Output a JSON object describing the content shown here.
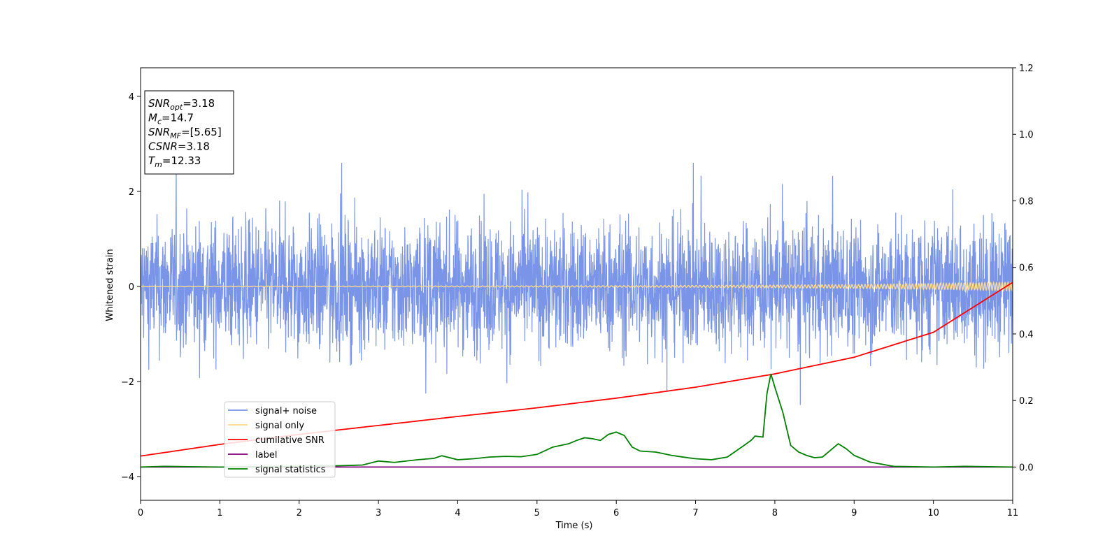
{
  "chart_data": {
    "type": "line",
    "xlabel": "Time (s)",
    "ylabel": "Whitened strain",
    "xlim": [
      0,
      11
    ],
    "ylim": [
      -4.5,
      4.6
    ],
    "y2lim": [
      -0.1,
      1.2
    ],
    "x_ticks": [
      0,
      1,
      2,
      3,
      4,
      5,
      6,
      7,
      8,
      9,
      10,
      11
    ],
    "y_ticks": [
      -4,
      -2,
      0,
      2,
      4
    ],
    "y2_ticks": [
      "0.0",
      "0.2",
      "0.4",
      "0.6",
      "0.8",
      "1.0",
      "1.2"
    ],
    "legend_position": "lower-left",
    "legend": [
      {
        "label": "signal+ noise",
        "color": "#7a95e8"
      },
      {
        "label": "signal only",
        "color": "#ffd98a"
      },
      {
        "label": "cumilative SNR",
        "color": "#ff0000"
      },
      {
        "label": "label",
        "color": "#800080"
      },
      {
        "label": "signal statistics",
        "color": "#008000"
      }
    ],
    "info_box": {
      "lines": [
        {
          "main": "SNR",
          "sub": "opt",
          "rest": "=3.18"
        },
        {
          "main": "M",
          "sub": "c",
          "rest": "=14.7"
        },
        {
          "main": "SNR",
          "sub": "MF",
          "rest": "=[5.65]"
        },
        {
          "main": "CSNR",
          "sub": "",
          "rest": "=3.18"
        },
        {
          "main": "T",
          "sub": "m",
          "rest": "=12.33"
        }
      ]
    },
    "series": [
      {
        "name": "signal+ noise",
        "axis": "left",
        "color": "#7a95e8",
        "description_values": "whitened noise, roughly mean 0, std 0.6, peaks near ±2.5"
      },
      {
        "name": "signal only",
        "axis": "left",
        "color": "#ffd98a",
        "x": [
          0,
          1,
          2,
          3,
          4,
          5,
          6,
          7,
          8,
          9,
          10,
          11
        ],
        "amplitude": [
          0.005,
          0.006,
          0.007,
          0.008,
          0.01,
          0.012,
          0.015,
          0.02,
          0.028,
          0.04,
          0.06,
          0.09
        ]
      },
      {
        "name": "cumilative SNR",
        "axis": "right",
        "color": "#ff0000",
        "x": [
          0,
          1,
          2,
          3,
          4,
          5,
          6,
          7,
          8,
          9,
          10,
          11
        ],
        "y": [
          0.033,
          0.068,
          0.098,
          0.125,
          0.152,
          0.178,
          0.207,
          0.24,
          0.28,
          0.33,
          0.405,
          0.555
        ]
      },
      {
        "name": "label",
        "axis": "right",
        "color": "#800080",
        "x": [
          0,
          11
        ],
        "y": [
          0.0,
          0.0
        ]
      },
      {
        "name": "signal statistics",
        "axis": "right",
        "color": "#008000",
        "x": [
          0,
          0.3,
          0.6,
          1.0,
          1.5,
          2.0,
          2.5,
          2.8,
          3.0,
          3.2,
          3.5,
          3.7,
          3.8,
          4.0,
          4.2,
          4.4,
          4.6,
          4.8,
          5.0,
          5.2,
          5.4,
          5.5,
          5.6,
          5.7,
          5.8,
          5.9,
          6.0,
          6.1,
          6.2,
          6.3,
          6.5,
          6.7,
          6.9,
          7.0,
          7.2,
          7.4,
          7.6,
          7.7,
          7.75,
          7.85,
          7.9,
          7.95,
          8.0,
          8.1,
          8.2,
          8.3,
          8.4,
          8.5,
          8.6,
          8.7,
          8.8,
          8.9,
          9.0,
          9.2,
          9.5,
          10.0,
          10.4,
          11.0
        ],
        "y": [
          0.0,
          0.002,
          0.001,
          0.0,
          0.001,
          0.002,
          0.004,
          0.006,
          0.018,
          0.014,
          0.022,
          0.026,
          0.034,
          0.022,
          0.025,
          0.03,
          0.032,
          0.031,
          0.038,
          0.06,
          0.07,
          0.08,
          0.088,
          0.085,
          0.08,
          0.098,
          0.105,
          0.095,
          0.06,
          0.048,
          0.045,
          0.035,
          0.028,
          0.025,
          0.022,
          0.03,
          0.063,
          0.08,
          0.093,
          0.09,
          0.22,
          0.28,
          0.24,
          0.165,
          0.065,
          0.045,
          0.035,
          0.028,
          0.03,
          0.05,
          0.07,
          0.055,
          0.035,
          0.015,
          0.002,
          0.0,
          0.002,
          0.0
        ]
      }
    ]
  }
}
